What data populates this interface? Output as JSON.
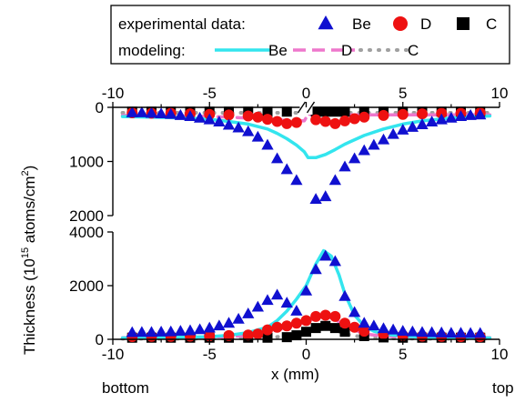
{
  "colors": {
    "be_model": "#33e5ee",
    "be_exp": "#1010d0",
    "d_exp": "#ee1111",
    "d_model": "#ee77cc",
    "c_exp": "#000000",
    "c_model": "#a0a0a0"
  },
  "legend": {
    "exp_label": "experimental data:",
    "model_label": "modeling:",
    "be": "Be",
    "d": "D",
    "c": "C"
  },
  "labels": {
    "ylabel": "Thickness (10",
    "ylabel_sup": "15",
    "ylabel_end": " atoms/cm",
    "ylabel_sup2": "2",
    "ylabel_close": ")",
    "xlabel": "x (mm)",
    "bottom": "bottom",
    "top": "top"
  },
  "chart_data": [
    {
      "type": "scatter",
      "panel": "upper",
      "xlim": [
        -10,
        10
      ],
      "ylim": [
        2000,
        0
      ],
      "y_inverted": true,
      "x_ticks": [
        "-10",
        "-5",
        "0",
        "5",
        "10"
      ],
      "y_ticks": [
        "0",
        "1000",
        "2000"
      ],
      "axis_break_at": 0,
      "exp": {
        "Be": {
          "x": [
            -9,
            -8.5,
            -8,
            -7.5,
            -7,
            -6.5,
            -6,
            -5.5,
            -5,
            -4.5,
            -4,
            -3.5,
            -3,
            -2.5,
            -2,
            -1.5,
            -1,
            -0.5,
            0.5,
            1,
            1.5,
            2,
            2.5,
            3,
            3.5,
            4,
            4.5,
            5,
            5.5,
            6,
            6.5,
            7,
            7.5,
            8,
            8.5,
            9
          ],
          "y": [
            100,
            100,
            110,
            120,
            130,
            150,
            170,
            200,
            230,
            270,
            330,
            380,
            450,
            550,
            700,
            950,
            1150,
            1350,
            1700,
            1650,
            1350,
            1100,
            950,
            800,
            700,
            600,
            500,
            420,
            370,
            320,
            270,
            230,
            200,
            170,
            150,
            140
          ]
        },
        "D": {
          "x": [
            -9,
            -8,
            -7,
            -6,
            -5,
            -4,
            -3,
            -2.5,
            -2,
            -1.5,
            -1,
            -0.5,
            0.5,
            1,
            1.5,
            2,
            2.5,
            3,
            4,
            5,
            6,
            7,
            8,
            9
          ],
          "y": [
            100,
            110,
            110,
            120,
            130,
            140,
            160,
            180,
            220,
            260,
            300,
            280,
            230,
            260,
            300,
            250,
            210,
            180,
            150,
            130,
            120,
            110,
            110,
            100
          ]
        },
        "C": {
          "x": [
            -9,
            -8,
            -7,
            -6,
            -5,
            -4,
            -3,
            -2,
            -1,
            0.5,
            1,
            1.5,
            2,
            3,
            4,
            5,
            6,
            7,
            8,
            9
          ],
          "y": [
            80,
            80,
            80,
            80,
            80,
            80,
            80,
            80,
            80,
            80,
            80,
            80,
            80,
            80,
            80,
            80,
            80,
            80,
            80,
            80
          ]
        }
      },
      "model": {
        "Be": {
          "x": [
            -9.5,
            -8,
            -6,
            -5,
            -4,
            -3,
            -2,
            -1.5,
            -1,
            -0.5,
            -0.1,
            0.1,
            0.5,
            1,
            1.5,
            2,
            3,
            4,
            5,
            6,
            8,
            9.5
          ],
          "y": [
            170,
            180,
            200,
            220,
            260,
            310,
            400,
            480,
            580,
            700,
            820,
            930,
            930,
            870,
            780,
            680,
            520,
            400,
            310,
            250,
            180,
            160
          ]
        },
        "D": {
          "x": [
            -9.5,
            -6,
            -4,
            -3,
            -2,
            -1,
            -0.1,
            0.1,
            1,
            2,
            3,
            4,
            6,
            9.5
          ],
          "y": [
            150,
            160,
            180,
            200,
            220,
            240,
            250,
            130,
            140,
            140,
            140,
            140,
            140,
            140
          ]
        },
        "C": {
          "x": [
            -9.5,
            -6,
            -4,
            -2,
            -1,
            -0.1,
            0.1,
            1,
            2,
            4,
            6,
            9.5
          ],
          "y": [
            100,
            100,
            100,
            100,
            100,
            100,
            100,
            100,
            100,
            100,
            100,
            100
          ]
        }
      }
    },
    {
      "type": "scatter",
      "panel": "lower",
      "xlim": [
        -10,
        10
      ],
      "ylim": [
        0,
        4000
      ],
      "x_ticks": [
        "-10",
        "-5",
        "0",
        "5",
        "10"
      ],
      "y_ticks": [
        "0",
        "2000",
        "4000"
      ],
      "exp": {
        "Be": {
          "x": [
            -9,
            -8.5,
            -8,
            -7.5,
            -7,
            -6.5,
            -6,
            -5.5,
            -5,
            -4.5,
            -4,
            -3.5,
            -3,
            -2.5,
            -2,
            -1.5,
            -1,
            -0.5,
            0,
            0.5,
            1,
            1.5,
            2,
            2.5,
            3,
            3.5,
            4,
            4.5,
            5,
            5.5,
            6,
            6.5,
            7,
            7.5,
            8,
            8.5,
            9
          ],
          "y": [
            250,
            260,
            260,
            270,
            280,
            300,
            320,
            360,
            420,
            500,
            600,
            750,
            950,
            1200,
            1450,
            1650,
            1350,
            1050,
            1800,
            2600,
            3100,
            2900,
            1600,
            1000,
            600,
            500,
            400,
            350,
            300,
            280,
            260,
            250,
            240,
            230,
            230,
            220,
            220
          ]
        },
        "D": {
          "x": [
            -9,
            -8,
            -7,
            -6,
            -5,
            -4,
            -3,
            -2.5,
            -2,
            -1.5,
            -1,
            -0.5,
            0,
            0.5,
            1,
            1.5,
            2,
            2.5,
            3,
            4,
            5,
            6,
            7,
            8,
            9
          ],
          "y": [
            100,
            110,
            110,
            120,
            130,
            140,
            160,
            200,
            350,
            450,
            500,
            600,
            700,
            850,
            900,
            850,
            600,
            450,
            300,
            200,
            150,
            120,
            110,
            100,
            100
          ]
        },
        "C": {
          "x": [
            -9,
            -8,
            -7,
            -6,
            -5,
            -4,
            -3,
            -2,
            -1,
            -0.5,
            0,
            0.5,
            1,
            1.5,
            2,
            3,
            4,
            5,
            6,
            7,
            8,
            9
          ],
          "y": [
            60,
            60,
            60,
            60,
            60,
            60,
            60,
            60,
            80,
            150,
            280,
            420,
            500,
            420,
            280,
            120,
            70,
            60,
            60,
            60,
            60,
            60
          ]
        }
      },
      "model": {
        "Be": {
          "x": [
            -9.5,
            -8,
            -6,
            -5,
            -4,
            -3,
            -2,
            -1.5,
            -1,
            -0.5,
            0,
            0.5,
            0.9,
            1.3,
            1.7,
            2,
            2.5,
            3,
            3.5,
            4,
            5,
            6,
            8,
            9.5
          ],
          "y": [
            50,
            60,
            80,
            100,
            150,
            250,
            450,
            700,
            1050,
            1500,
            2000,
            2800,
            3300,
            3100,
            2400,
            1700,
            900,
            500,
            300,
            200,
            120,
            80,
            60,
            50
          ]
        },
        "D": {
          "x": [
            -9.5,
            -6,
            -4,
            -3,
            -2,
            -1.5,
            -1,
            -0.5,
            0,
            0.5,
            1,
            1.5,
            2,
            2.5,
            3,
            4,
            6,
            9.5
          ],
          "y": [
            60,
            70,
            100,
            150,
            250,
            350,
            450,
            550,
            650,
            800,
            850,
            750,
            500,
            350,
            200,
            120,
            80,
            60
          ]
        },
        "C": {
          "x": [
            -9.5,
            -6,
            -4,
            -3,
            -2,
            -1,
            0,
            0.5,
            1,
            1.5,
            2,
            3,
            4,
            6,
            9.5
          ],
          "y": [
            20,
            20,
            30,
            40,
            60,
            120,
            250,
            350,
            400,
            350,
            200,
            70,
            40,
            20,
            20
          ]
        }
      }
    }
  ]
}
